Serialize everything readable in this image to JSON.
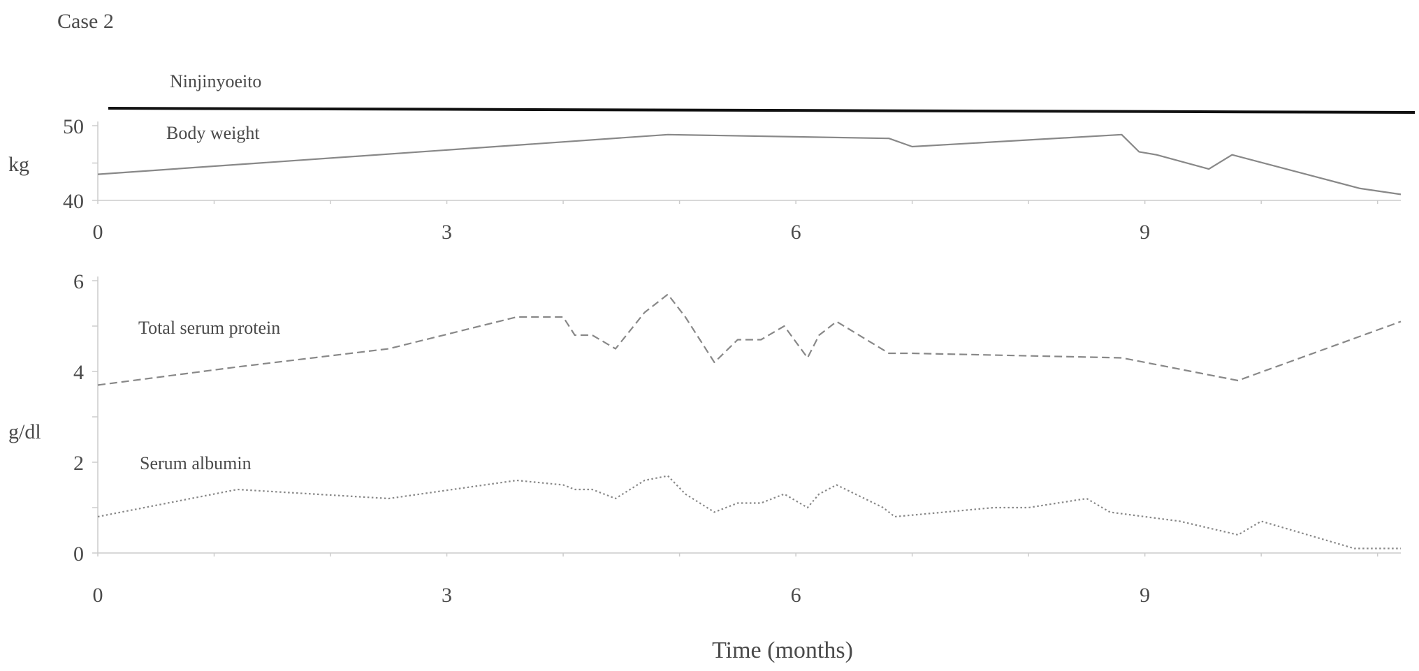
{
  "case_label": "Case 2",
  "treatment_label": "Ninjinyoeito",
  "x_axis_title": "Time (months)",
  "chart_data": [
    {
      "type": "line",
      "title": "",
      "xlabel": "",
      "ylabel": "kg",
      "xlim": [
        0,
        11.2
      ],
      "ylim": [
        40,
        50
      ],
      "x_ticks": [
        0,
        3,
        6,
        9
      ],
      "x_tick_labels": [
        "0",
        "3",
        "6",
        "9"
      ],
      "y_ticks": [
        40,
        50
      ],
      "y_tick_labels": [
        "40",
        "50"
      ],
      "grid": false,
      "series": [
        {
          "name": "Body weight",
          "style": "solid",
          "color": "#888888",
          "x": [
            0,
            4.9,
            6.8,
            7.0,
            8.8,
            8.95,
            9.1,
            9.55,
            9.75,
            10.85,
            11.2
          ],
          "y": [
            43.5,
            48.8,
            48.3,
            47.2,
            48.8,
            46.5,
            46.1,
            44.2,
            46.1,
            41.6,
            40.8
          ]
        }
      ],
      "treatment_bar": {
        "x": [
          0,
          11.2
        ],
        "label": "Ninjinyoeito"
      }
    },
    {
      "type": "line",
      "title": "",
      "xlabel": "Time (months)",
      "ylabel": "g/dl",
      "xlim": [
        0,
        11.2
      ],
      "ylim": [
        0,
        6
      ],
      "x_ticks": [
        0,
        3,
        6,
        9
      ],
      "x_tick_labels": [
        "0",
        "3",
        "6",
        "9"
      ],
      "y_ticks": [
        0,
        2,
        4,
        6
      ],
      "y_tick_labels": [
        "0",
        "2",
        "4",
        "6"
      ],
      "grid": false,
      "series": [
        {
          "name": "Total serum protein",
          "style": "dashed",
          "color": "#888888",
          "x": [
            0,
            1.2,
            2.5,
            3.6,
            4.0,
            4.1,
            4.25,
            4.45,
            4.7,
            4.9,
            5.05,
            5.3,
            5.5,
            5.7,
            5.9,
            6.1,
            6.2,
            6.35,
            6.8,
            7.0,
            8.8,
            9.8,
            11.2
          ],
          "y": [
            3.7,
            4.1,
            4.5,
            5.2,
            5.2,
            4.8,
            4.8,
            4.5,
            5.3,
            5.7,
            5.2,
            4.2,
            4.7,
            4.7,
            5.0,
            4.3,
            4.8,
            5.1,
            4.4,
            4.4,
            4.3,
            3.8,
            5.1
          ]
        },
        {
          "name": "Serum albumin",
          "style": "dotted",
          "color": "#888888",
          "x": [
            0,
            1.2,
            2.5,
            3.6,
            4.0,
            4.1,
            4.25,
            4.45,
            4.7,
            4.9,
            5.05,
            5.3,
            5.5,
            5.7,
            5.9,
            6.1,
            6.2,
            6.35,
            6.75,
            6.85,
            7.7,
            8.0,
            8.5,
            8.7,
            9.3,
            9.8,
            10.0,
            10.8,
            11.2
          ],
          "y": [
            0.8,
            1.4,
            1.2,
            1.6,
            1.5,
            1.4,
            1.4,
            1.2,
            1.6,
            1.7,
            1.3,
            0.9,
            1.1,
            1.1,
            1.3,
            1.0,
            1.3,
            1.5,
            1.0,
            0.8,
            1.0,
            1.0,
            1.2,
            0.9,
            0.7,
            0.4,
            0.7,
            0.1,
            0.1
          ]
        }
      ]
    }
  ]
}
